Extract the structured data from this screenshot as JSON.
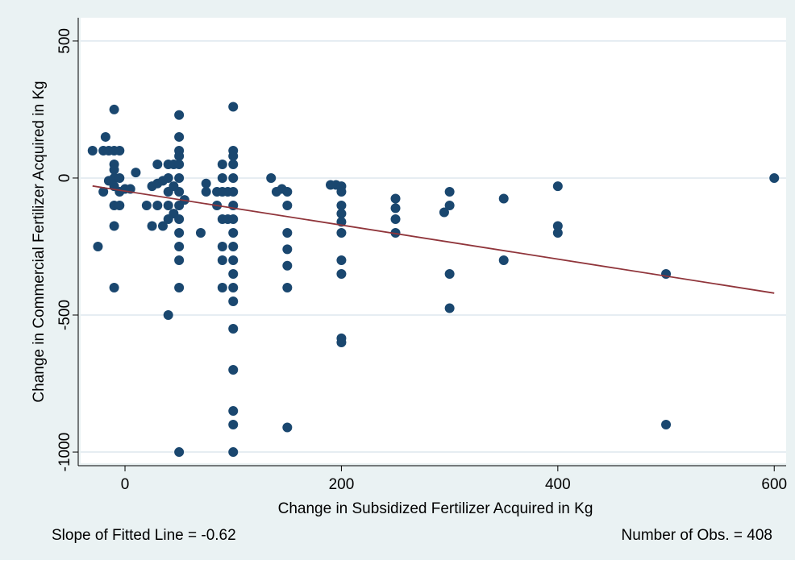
{
  "chart_data": {
    "type": "scatter",
    "x_label": "Change in Subsidized Fertilizer Acquired in Kg",
    "y_label": "Change in Commercial Fertilizer Acquired in Kg",
    "notes": [
      "Slope of Fitted Line = -0.62",
      "Number of Obs. = 408"
    ],
    "xlim": [
      -41,
      611
    ],
    "ylim": [
      -1041,
      585
    ],
    "xticks": [
      0,
      200,
      400,
      600
    ],
    "yticks": [
      -1000,
      -500,
      0,
      500
    ],
    "grid": true,
    "points": {
      "color": "#1a476f",
      "x": [
        -30,
        -25,
        -20,
        -20,
        -18,
        -15,
        -15,
        -10,
        -10,
        -10,
        -10,
        -10,
        -10,
        -10,
        -10,
        -10,
        -5,
        -5,
        -5,
        -5,
        0,
        5,
        10,
        20,
        25,
        25,
        30,
        30,
        30,
        35,
        35,
        40,
        40,
        40,
        40,
        40,
        40,
        45,
        45,
        45,
        50,
        50,
        50,
        50,
        50,
        50,
        50,
        50,
        50,
        50,
        50,
        50,
        50,
        50,
        55,
        70,
        75,
        75,
        85,
        85,
        90,
        90,
        90,
        90,
        90,
        90,
        90,
        95,
        95,
        100,
        100,
        100,
        100,
        100,
        100,
        100,
        100,
        100,
        100,
        100,
        100,
        100,
        100,
        100,
        100,
        100,
        100,
        100,
        135,
        140,
        145,
        150,
        150,
        150,
        150,
        150,
        150,
        150,
        190,
        195,
        200,
        200,
        200,
        200,
        200,
        200,
        200,
        200,
        200,
        200,
        250,
        250,
        250,
        250,
        295,
        300,
        300,
        300,
        300,
        350,
        350,
        400,
        400,
        400,
        500,
        500,
        600
      ],
      "y": [
        100,
        -250,
        100,
        -50,
        150,
        100,
        -10,
        250,
        100,
        50,
        30,
        0,
        -30,
        -100,
        -175,
        -400,
        100,
        0,
        -50,
        -100,
        -40,
        -40,
        20,
        -100,
        -30,
        -175,
        50,
        -20,
        -100,
        -175,
        -10,
        50,
        0,
        -50,
        -100,
        -150,
        -500,
        50,
        -30,
        -130,
        230,
        150,
        100,
        80,
        50,
        0,
        -50,
        -100,
        -150,
        -200,
        -250,
        -300,
        -400,
        -1000,
        -80,
        -200,
        -20,
        -50,
        -50,
        -100,
        50,
        0,
        -50,
        -150,
        -250,
        -300,
        -400,
        -50,
        -150,
        260,
        100,
        80,
        50,
        0,
        -50,
        -100,
        -150,
        -200,
        -250,
        -300,
        -350,
        -400,
        -450,
        -550,
        -700,
        -850,
        -900,
        -1000,
        0,
        -50,
        -40,
        -50,
        -100,
        -200,
        -260,
        -320,
        -400,
        -910,
        -25,
        -25,
        -30,
        -50,
        -100,
        -130,
        -160,
        -200,
        -300,
        -350,
        -585,
        -600,
        -75,
        -110,
        -150,
        -200,
        -125,
        -50,
        -100,
        -350,
        -475,
        -75,
        -300,
        -30,
        -175,
        -200,
        -350,
        -900,
        0
      ]
    },
    "fit_line": {
      "color": "#90353b",
      "x": [
        -30,
        600
      ],
      "y": [
        -29,
        -420
      ]
    }
  }
}
